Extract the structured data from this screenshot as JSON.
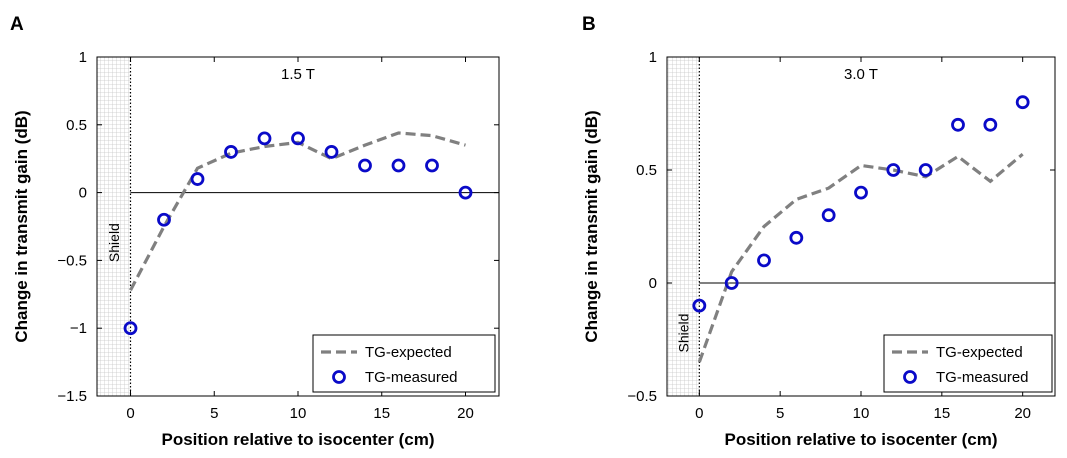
{
  "colors": {
    "expected_line": "#808080",
    "measured_marker": "#0a0ac8",
    "shield_grid": "#c8c8c8",
    "axis": "#000000"
  },
  "chart_data": [
    {
      "panel": "A",
      "type": "line",
      "annotation": "1.5 T",
      "shield_label": "Shield",
      "xlabel": "Position relative to isocenter (cm)",
      "ylabel": "Change in transmit gain (dB)",
      "xlim": [
        -2,
        22
      ],
      "ylim": [
        -1.5,
        1
      ],
      "xticks": [
        0,
        5,
        10,
        15,
        20
      ],
      "xtick_labels": [
        "0",
        "5",
        "10",
        "15",
        "20"
      ],
      "yticks": [
        -1.5,
        -1,
        -0.5,
        0,
        0.5,
        1
      ],
      "ytick_labels": [
        "−1.5",
        "−1",
        "−0.5",
        "0",
        "0.5",
        "1"
      ],
      "shield_region": [
        -2,
        0
      ],
      "zero_line": true,
      "grid": false,
      "legend_position": "bottom-right",
      "series": [
        {
          "name": "TG-expected",
          "style": "dashed-line",
          "x": [
            0,
            2,
            4,
            6,
            8,
            10,
            12,
            14,
            16,
            18,
            20
          ],
          "y": [
            -0.72,
            -0.25,
            0.18,
            0.29,
            0.34,
            0.37,
            0.25,
            0.35,
            0.44,
            0.42,
            0.35
          ]
        },
        {
          "name": "TG-measured",
          "style": "circle-marker",
          "x": [
            0,
            2,
            4,
            6,
            8,
            10,
            12,
            14,
            16,
            18,
            20
          ],
          "y": [
            -1.0,
            -0.2,
            0.1,
            0.3,
            0.4,
            0.4,
            0.3,
            0.2,
            0.2,
            0.2,
            0.0
          ]
        }
      ]
    },
    {
      "panel": "B",
      "type": "line",
      "annotation": "3.0 T",
      "shield_label": "Shield",
      "xlabel": "Position relative to isocenter (cm)",
      "ylabel": "Change in transmit gain (dB)",
      "xlim": [
        -2,
        22
      ],
      "ylim": [
        -0.5,
        1
      ],
      "xticks": [
        0,
        5,
        10,
        15,
        20
      ],
      "xtick_labels": [
        "0",
        "5",
        "10",
        "15",
        "20"
      ],
      "yticks": [
        -0.5,
        0,
        0.5,
        1
      ],
      "ytick_labels": [
        "−0.5",
        "0",
        "0.5",
        "1"
      ],
      "shield_region": [
        -2,
        0
      ],
      "zero_line": true,
      "grid": false,
      "legend_position": "bottom-right",
      "series": [
        {
          "name": "TG-expected",
          "style": "dashed-line",
          "x": [
            0,
            2,
            4,
            6,
            8,
            10,
            12,
            14,
            16,
            18,
            20
          ],
          "y": [
            -0.35,
            0.05,
            0.25,
            0.37,
            0.42,
            0.52,
            0.5,
            0.47,
            0.56,
            0.45,
            0.57
          ]
        },
        {
          "name": "TG-measured",
          "style": "circle-marker",
          "x": [
            0,
            2,
            4,
            6,
            8,
            10,
            12,
            14,
            16,
            18,
            20
          ],
          "y": [
            -0.1,
            0.0,
            0.1,
            0.2,
            0.3,
            0.4,
            0.5,
            0.5,
            0.7,
            0.7,
            0.8
          ]
        }
      ]
    }
  ]
}
